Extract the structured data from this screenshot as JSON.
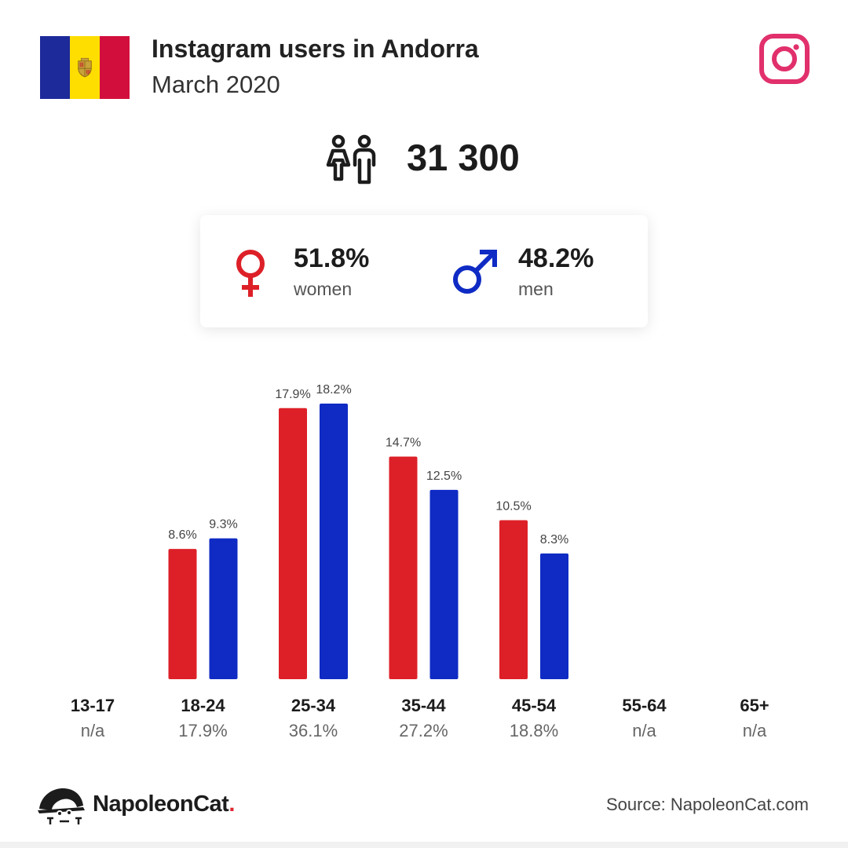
{
  "header": {
    "title": "Instagram users in Andorra",
    "subtitle": "March 2020"
  },
  "flag_colors": [
    "#1d2a9a",
    "#fedd00",
    "#d20f3c"
  ],
  "icons": {
    "platform": "instagram-icon",
    "people": "people-icon",
    "female": "female-symbol-icon",
    "male": "male-symbol-icon",
    "brand": "napoleoncat-logo-icon"
  },
  "total": "31 300",
  "gender": {
    "women": {
      "pct": "51.8%",
      "label": "women",
      "color": "#dd2028"
    },
    "men": {
      "pct": "48.2%",
      "label": "men",
      "color": "#0f2bc4"
    }
  },
  "chart_data": {
    "type": "bar",
    "categories": [
      "13-17",
      "18-24",
      "25-34",
      "35-44",
      "45-54",
      "55-64",
      "65+"
    ],
    "category_totals": [
      "n/a",
      "17.9%",
      "36.1%",
      "27.2%",
      "18.8%",
      "n/a",
      "n/a"
    ],
    "series": [
      {
        "key": "women",
        "color": "#dd2028",
        "values": [
          null,
          8.6,
          17.9,
          14.7,
          10.5,
          null,
          null
        ],
        "labels": [
          "",
          "8.6%",
          "17.9%",
          "14.7%",
          "10.5%",
          "",
          ""
        ]
      },
      {
        "key": "men",
        "color": "#0f2bc4",
        "values": [
          null,
          9.3,
          18.2,
          12.5,
          8.3,
          null,
          null
        ],
        "labels": [
          "",
          "9.3%",
          "18.2%",
          "12.5%",
          "8.3%",
          "",
          ""
        ]
      }
    ],
    "ylim": [
      0,
      18.2
    ],
    "grid": false
  },
  "footer": {
    "brand": "NapoleonCat",
    "brand_dot": ".",
    "source": "Source: NapoleonCat.com"
  }
}
